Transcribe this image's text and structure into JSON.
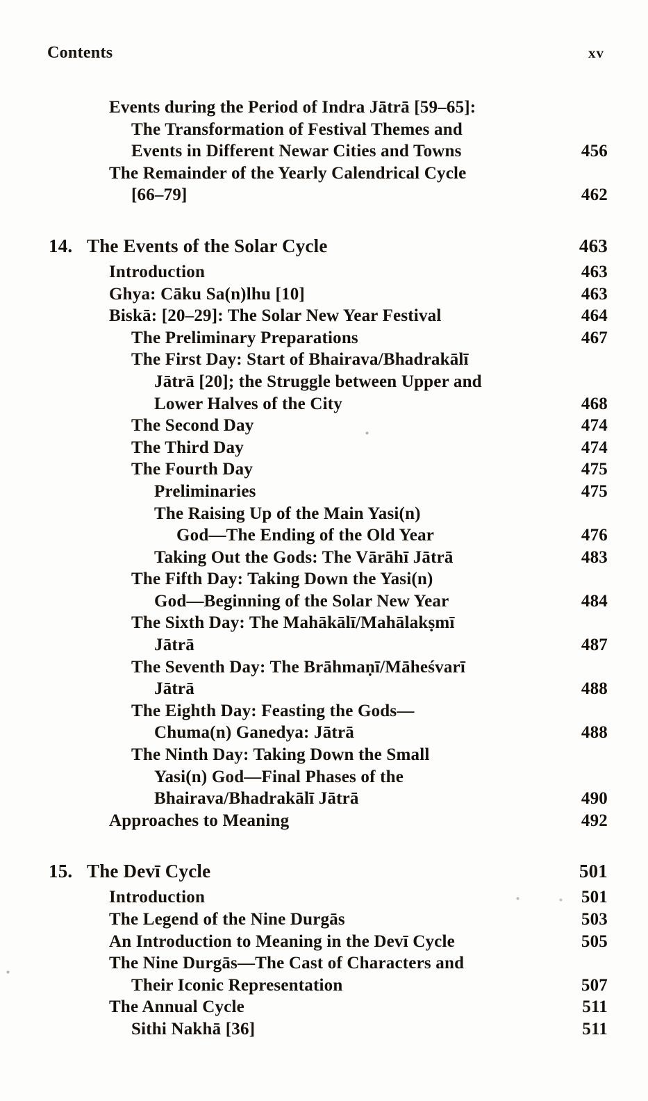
{
  "header": {
    "left": "Contents",
    "right": "xv"
  },
  "toc": {
    "rows": [
      {
        "indent": 1,
        "num": "",
        "text": "Events during the Period of Indra Jātrā [59–65]:",
        "page": ""
      },
      {
        "indent": 2,
        "num": "",
        "text": "The Transformation of Festival Themes and",
        "page": ""
      },
      {
        "indent": 2,
        "num": "",
        "text": "Events in Different Newar Cities and Towns",
        "page": "456"
      },
      {
        "indent": 1,
        "num": "",
        "text": "The Remainder of the Yearly Calendrical Cycle",
        "page": ""
      },
      {
        "indent": 2,
        "num": "",
        "text": "[66–79]",
        "page": "462"
      },
      {
        "indent": 0,
        "num": "14.",
        "text": "The Events of the Solar Cycle",
        "page": "463"
      },
      {
        "indent": 1,
        "num": "",
        "text": "Introduction",
        "page": "463"
      },
      {
        "indent": 1,
        "num": "",
        "text": "Ghya: Cāku Sa(n)lhu [10]",
        "page": "463"
      },
      {
        "indent": 1,
        "num": "",
        "text": "Biskā: [20–29]: The Solar New Year Festival",
        "page": "464"
      },
      {
        "indent": 2,
        "num": "",
        "text": "The Preliminary Preparations",
        "page": "467"
      },
      {
        "indent": 2,
        "num": "",
        "text": "The First Day: Start of Bhairava/Bhadrakālī",
        "page": ""
      },
      {
        "indent": 3,
        "num": "",
        "text": "Jātrā [20]; the Struggle between Upper and",
        "page": ""
      },
      {
        "indent": 3,
        "num": "",
        "text": "Lower Halves of the City",
        "page": "468"
      },
      {
        "indent": 2,
        "num": "",
        "text": "The Second Day",
        "page": "474"
      },
      {
        "indent": 2,
        "num": "",
        "text": "The Third Day",
        "page": "474"
      },
      {
        "indent": 2,
        "num": "",
        "text": "The Fourth Day",
        "page": "475"
      },
      {
        "indent": 3,
        "num": "",
        "text": "Preliminaries",
        "page": "475"
      },
      {
        "indent": 3,
        "num": "",
        "text": "The Raising Up of the Main Yasi(n)",
        "page": ""
      },
      {
        "indent": 4,
        "num": "",
        "text": "God—The Ending of the Old Year",
        "page": "476"
      },
      {
        "indent": 3,
        "num": "",
        "text": "Taking Out the Gods: The Vārāhī Jātrā",
        "page": "483"
      },
      {
        "indent": 2,
        "num": "",
        "text": "The Fifth Day: Taking Down the Yasi(n)",
        "page": ""
      },
      {
        "indent": 3,
        "num": "",
        "text": "God—Beginning of the Solar New Year",
        "page": "484"
      },
      {
        "indent": 2,
        "num": "",
        "text": "The Sixth Day: The Mahākālī/Mahālakṣmī",
        "page": ""
      },
      {
        "indent": 3,
        "num": "",
        "text": "Jātrā",
        "page": "487"
      },
      {
        "indent": 2,
        "num": "",
        "text": "The Seventh Day: The Brāhmaṇī/Māheśvarī",
        "page": ""
      },
      {
        "indent": 3,
        "num": "",
        "text": "Jātrā",
        "page": "488"
      },
      {
        "indent": 2,
        "num": "",
        "text": "The Eighth Day: Feasting the Gods—",
        "page": ""
      },
      {
        "indent": 3,
        "num": "",
        "text": "Chuma(n) Ganedya: Jātrā",
        "page": "488"
      },
      {
        "indent": 2,
        "num": "",
        "text": "The Ninth Day: Taking Down the Small",
        "page": ""
      },
      {
        "indent": 3,
        "num": "",
        "text": "Yasi(n) God—Final Phases of the",
        "page": ""
      },
      {
        "indent": 3,
        "num": "",
        "text": "Bhairava/Bhadrakālī Jātrā",
        "page": "490"
      },
      {
        "indent": 1,
        "num": "",
        "text": "Approaches to Meaning",
        "page": "492"
      },
      {
        "indent": 0,
        "num": "15.",
        "text": "The Devī Cycle",
        "page": "501"
      },
      {
        "indent": 1,
        "num": "",
        "text": "Introduction",
        "page": "501"
      },
      {
        "indent": 1,
        "num": "",
        "text": "The Legend of the Nine Durgās",
        "page": "503"
      },
      {
        "indent": 1,
        "num": "",
        "text": "An Introduction to Meaning in the Devī Cycle",
        "page": "505"
      },
      {
        "indent": 1,
        "num": "",
        "text": "The Nine Durgās—The Cast of Characters and",
        "page": ""
      },
      {
        "indent": 2,
        "num": "",
        "text": "Their Iconic Representation",
        "page": "507"
      },
      {
        "indent": 1,
        "num": "",
        "text": "The Annual Cycle",
        "page": "511"
      },
      {
        "indent": 2,
        "num": "",
        "text": "Sithi Nakhā [36]",
        "page": "511"
      }
    ]
  }
}
